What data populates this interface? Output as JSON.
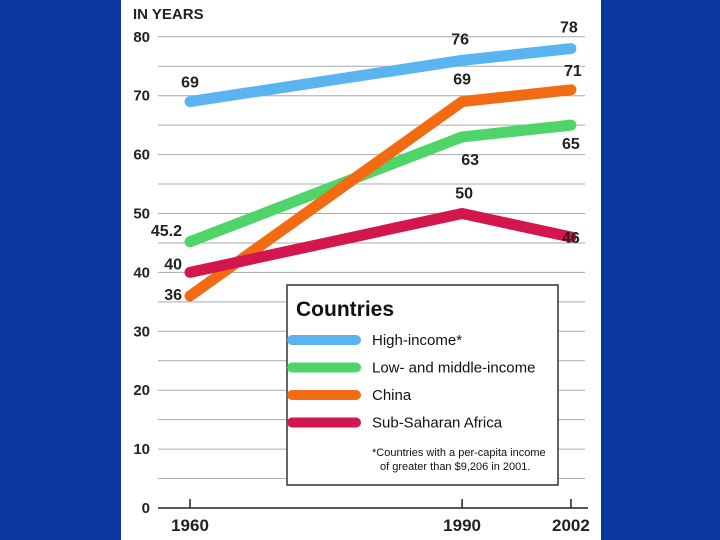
{
  "chart_data": {
    "type": "line",
    "title": "",
    "ylabel": "IN YEARS",
    "xlabel": "",
    "x": [
      1960,
      1990,
      2002
    ],
    "x_tick_labels": [
      "1960",
      "1990",
      "2002"
    ],
    "ylim": [
      0,
      80
    ],
    "y_ticks": [
      0,
      10,
      20,
      30,
      40,
      50,
      60,
      70,
      80
    ],
    "y_tick_labels": [
      "0",
      "10",
      "20",
      "30",
      "40",
      "50",
      "60",
      "70",
      "80"
    ],
    "grid": true,
    "legend_title": "Countries",
    "legend_position": "bottom-right",
    "legend_note": "*Countries with a per-capita income of greater than $9,206 in 2001.",
    "series": [
      {
        "name": "High-income*",
        "color": "#5ab4f0",
        "values": [
          69,
          76,
          78
        ],
        "labels": [
          "69",
          "76",
          "78"
        ]
      },
      {
        "name": "Low- and middle-income",
        "color": "#4fd46a",
        "values": [
          45.2,
          63,
          65
        ],
        "labels": [
          "45.2",
          "63",
          "65"
        ]
      },
      {
        "name": "China",
        "color": "#f26b12",
        "values": [
          36,
          69,
          71
        ],
        "labels": [
          "36",
          "69",
          "71"
        ]
      },
      {
        "name": "Sub-Saharan Africa",
        "color": "#d4164f",
        "values": [
          40,
          50,
          46
        ],
        "labels": [
          "40",
          "50",
          "46"
        ]
      }
    ]
  },
  "background_color": "#0a37a0"
}
